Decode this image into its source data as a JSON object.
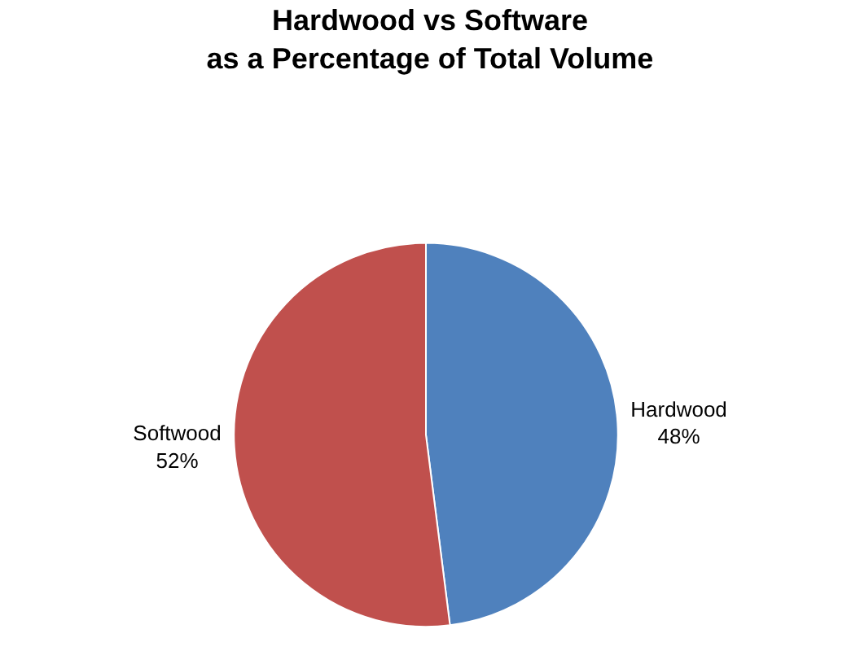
{
  "chart_data": {
    "type": "pie",
    "title": "Hardwood vs Software\nas a Percentage of Total Volume",
    "categories": [
      "Hardwood",
      "Softwood"
    ],
    "values": [
      48,
      52
    ],
    "value_labels": [
      "48%",
      "52%"
    ],
    "colors": [
      "#4f81bd",
      "#c0504d"
    ],
    "legend": false
  }
}
